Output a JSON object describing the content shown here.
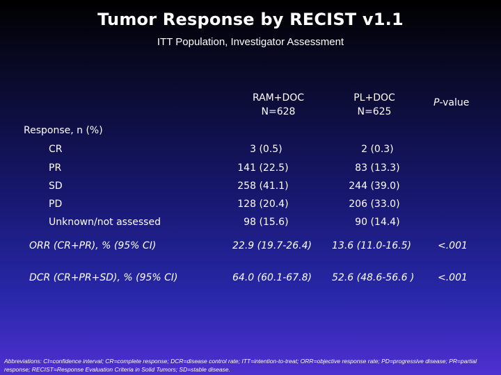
{
  "title": "Tumor Response by RECIST v1.1",
  "subtitle": "ITT Population, Investigator Assessment",
  "columns": {
    "arm1": {
      "name": "RAM+DOC",
      "n": "N=628"
    },
    "arm2": {
      "name": "PL+DOC",
      "n": "N=625"
    },
    "pvalue": {
      "italic": "P",
      "rest": "-value"
    }
  },
  "section_label": "Response, n (%)",
  "responses": [
    {
      "label": "CR",
      "arm1_count": "3",
      "arm1_pct": "(0.5)",
      "arm2_count": "2",
      "arm2_pct": "(0.3)"
    },
    {
      "label": "PR",
      "arm1_count": "141",
      "arm1_pct": "(22.5)",
      "arm2_count": "83",
      "arm2_pct": "(13.3)"
    },
    {
      "label": "SD",
      "arm1_count": "258",
      "arm1_pct": "(41.1)",
      "arm2_count": "244",
      "arm2_pct": "(39.0)"
    },
    {
      "label": "PD",
      "arm1_count": "128",
      "arm1_pct": "(20.4)",
      "arm2_count": "206",
      "arm2_pct": "(33.0)"
    },
    {
      "label": "Unknown/not assessed",
      "arm1_count": "98",
      "arm1_pct": "(15.6)",
      "arm2_count": "90",
      "arm2_pct": "(14.4)"
    }
  ],
  "summary_rows": [
    {
      "label": "ORR (CR+PR), % (95% CI)",
      "arm1": "22.9 (19.7-26.4)",
      "arm2": "13.6 (11.0-16.5)",
      "pvalue": "<.001"
    },
    {
      "label": "DCR (CR+PR+SD), % (95% CI)",
      "arm1": "64.0 (60.1-67.8)",
      "arm2": "52.6 (48.6-56.6 )",
      "pvalue": "<.001"
    }
  ],
  "footnote": "Abbreviations: CI=confidence interval; CR=complete response; DCR=disease control rate; ITT=intention-to-treat; ORR=objective response rate; PD=progressive disease; PR=partial response; RECIST=Response Evaluation Criteria in Solid Tumors; SD=stable disease."
}
